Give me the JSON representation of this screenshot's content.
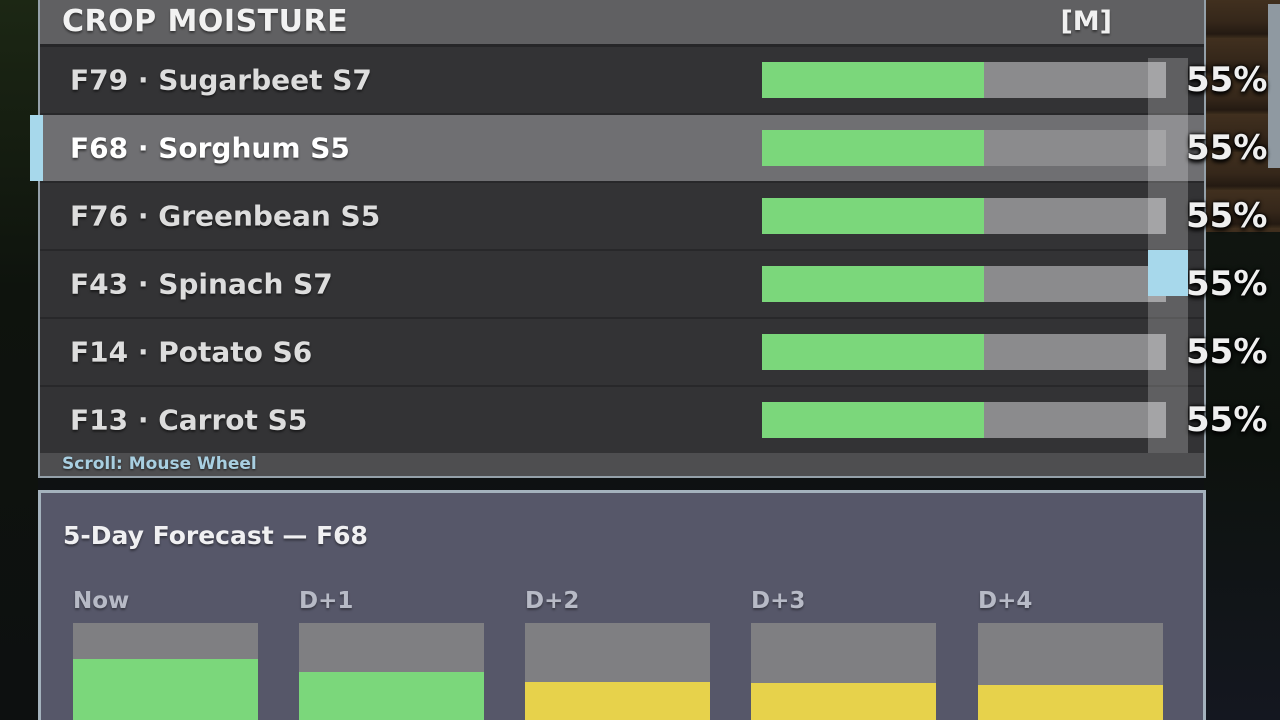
{
  "colors": {
    "moisture_green": "#7bd77b",
    "forecast_yellow": "#e7d24b",
    "accent_blue": "#a7d8eb",
    "panel_border": "#b2c2cc",
    "forecast_panel_bg": "#565769"
  },
  "crop_moisture_panel": {
    "title": "CROP MOISTURE",
    "unit_label": "[M]",
    "scroll_hint": "Scroll: Mouse Wheel",
    "rows": [
      {
        "field": "F79",
        "crop": "Sugarbeet",
        "stage": "S7",
        "label": "F79 · Sugarbeet S7",
        "moisture_percent": 55,
        "value_label": "55%",
        "selected": false
      },
      {
        "field": "F68",
        "crop": "Sorghum",
        "stage": "S5",
        "label": "F68 · Sorghum S5",
        "moisture_percent": 55,
        "value_label": "55%",
        "selected": true
      },
      {
        "field": "F76",
        "crop": "Greenbean",
        "stage": "S5",
        "label": "F76 · Greenbean S5",
        "moisture_percent": 55,
        "value_label": "55%",
        "selected": false
      },
      {
        "field": "F43",
        "crop": "Spinach",
        "stage": "S7",
        "label": "F43 · Spinach S7",
        "moisture_percent": 55,
        "value_label": "55%",
        "selected": false
      },
      {
        "field": "F14",
        "crop": "Potato",
        "stage": "S6",
        "label": "F14 · Potato S6",
        "moisture_percent": 55,
        "value_label": "55%",
        "selected": false
      },
      {
        "field": "F13",
        "crop": "Carrot",
        "stage": "S5",
        "label": "F13 · Carrot S5",
        "moisture_percent": 55,
        "value_label": "55%",
        "selected": false
      }
    ]
  },
  "forecast_panel": {
    "title": "5-Day Forecast — F68",
    "selected_field": "F68",
    "columns": [
      {
        "label": "Now",
        "fill_color": "#7bd77b",
        "fill_percent": 72
      },
      {
        "label": "D+1",
        "fill_color": "#7bd77b",
        "fill_percent": 62
      },
      {
        "label": "D+2",
        "fill_color": "#e7d24b",
        "fill_percent": 55
      },
      {
        "label": "D+3",
        "fill_color": "#e7d24b",
        "fill_percent": 54
      },
      {
        "label": "D+4",
        "fill_color": "#e7d24b",
        "fill_percent": 52
      }
    ]
  }
}
